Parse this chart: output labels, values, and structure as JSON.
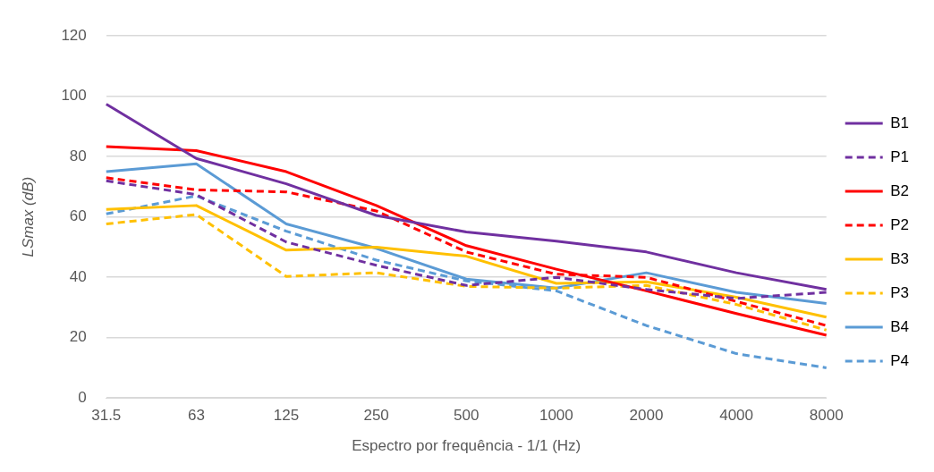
{
  "chart_data": {
    "type": "line",
    "xlabel": "Espectro por frequência - 1/1 (Hz)",
    "ylabel": "LSmax (dB)",
    "categories": [
      "31.5",
      "63",
      "125",
      "250",
      "500",
      "1000",
      "2000",
      "4000",
      "8000"
    ],
    "ylim": [
      0,
      120
    ],
    "yticks": [
      0,
      20,
      40,
      60,
      80,
      100,
      120
    ],
    "grid": "y",
    "legend": "right",
    "marker": "none",
    "series": [
      {
        "name": "B1",
        "color": "#7030a0",
        "line_style": "solid",
        "values": [
          97.4,
          79.4,
          71,
          60.5,
          55,
          52,
          48.4,
          41.5,
          36
        ]
      },
      {
        "name": "P1",
        "color": "#7030a0",
        "line_style": "dashed",
        "values": [
          72,
          67.4,
          51.7,
          44,
          37.3,
          40,
          36,
          33,
          35
        ]
      },
      {
        "name": "B2",
        "color": "#ff0000",
        "line_style": "solid",
        "values": [
          83.3,
          82,
          75,
          63.8,
          50.5,
          42.7,
          35.5,
          28,
          20.8
        ]
      },
      {
        "name": "P2",
        "color": "#ff0000",
        "line_style": "dashed",
        "values": [
          73,
          69,
          68.3,
          62,
          48.4,
          41,
          40,
          32,
          24
        ]
      },
      {
        "name": "B3",
        "color": "#ffc000",
        "line_style": "solid",
        "values": [
          62.5,
          63.8,
          49,
          50,
          47,
          38,
          38.5,
          33.4,
          26.8
        ]
      },
      {
        "name": "P3",
        "color": "#ffc000",
        "line_style": "dashed",
        "values": [
          57.7,
          60.8,
          40.3,
          41.5,
          37,
          36.4,
          37.3,
          31,
          22.5
        ]
      },
      {
        "name": "B4",
        "color": "#5b9bd5",
        "line_style": "solid",
        "values": [
          75,
          77.6,
          57.7,
          49.6,
          39.4,
          36.4,
          41.5,
          35,
          31.3
        ]
      },
      {
        "name": "P4",
        "color": "#5b9bd5",
        "line_style": "dashed",
        "values": [
          61,
          67,
          55.3,
          45.7,
          38.8,
          35.5,
          24,
          14.7,
          10
        ]
      }
    ]
  }
}
